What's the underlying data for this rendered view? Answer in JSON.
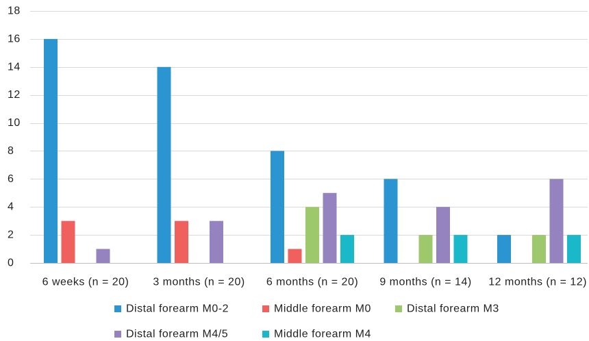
{
  "chart_data": {
    "type": "bar",
    "categories": [
      "6 weeks (n = 20)",
      "3 months (n = 20)",
      "6 months (n = 20)",
      "9 months (n = 14)",
      "12 months (n = 12)"
    ],
    "series": [
      {
        "name": "Distal forearm M0-2",
        "values": [
          16,
          14,
          8,
          6,
          2
        ],
        "color": "#2b95d1"
      },
      {
        "name": "Middle forearm M0",
        "values": [
          3,
          3,
          1,
          0,
          0
        ],
        "color": "#f0605d"
      },
      {
        "name": "Distal forearm M3",
        "values": [
          0,
          0,
          4,
          2,
          2
        ],
        "color": "#9dc96c"
      },
      {
        "name": "Distal forearm M4/5",
        "values": [
          1,
          3,
          5,
          4,
          6
        ],
        "color": "#9483bf"
      },
      {
        "name": "Middle forearm M4",
        "values": [
          0,
          0,
          2,
          2,
          2
        ],
        "color": "#1ab8c8"
      }
    ],
    "ylim": [
      0,
      18
    ],
    "yticks": [
      0,
      2,
      4,
      6,
      8,
      10,
      12,
      14,
      16,
      18
    ],
    "grid": true,
    "legend_position": "bottom"
  }
}
